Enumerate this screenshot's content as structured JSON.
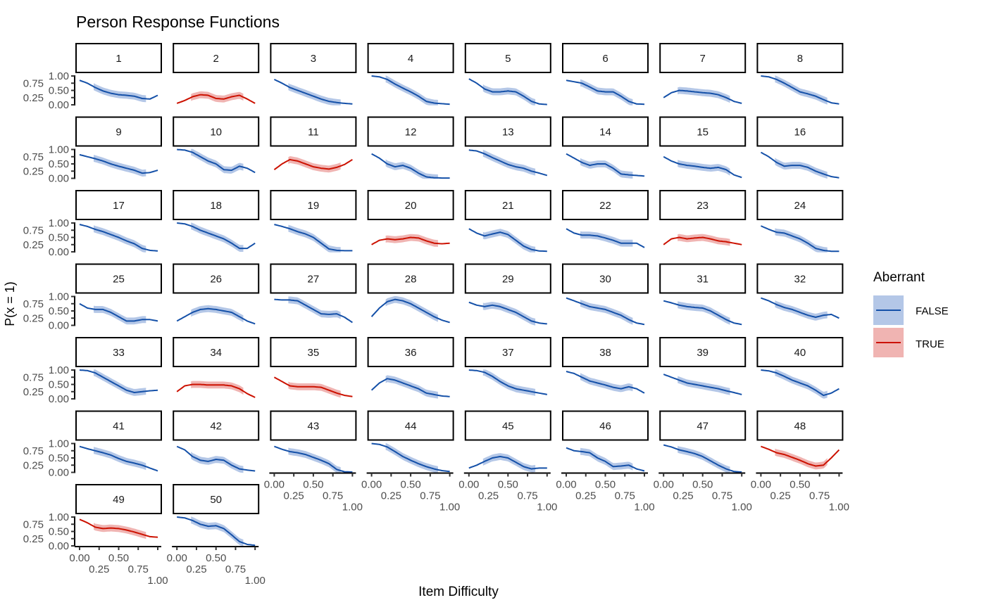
{
  "chart_data": {
    "type": "line",
    "title": "Person Response Functions",
    "xlabel": "Item Difficulty",
    "ylabel": "P(x = 1)",
    "xlim": [
      0,
      1
    ],
    "ylim": [
      0,
      1
    ],
    "x_ticks": [
      "0.00",
      "0.25",
      "0.50",
      "0.75",
      "1.00"
    ],
    "y_ticks": [
      "0.00",
      "0.25",
      "0.50",
      "0.75",
      "1.00"
    ],
    "x": [
      0,
      0.1,
      0.2,
      0.3,
      0.4,
      0.5,
      0.6,
      0.7,
      0.8,
      0.9,
      1.0
    ],
    "ribbon_x_range": [
      0.18,
      0.85
    ],
    "ribbon_halfwidth": 0.12,
    "legend": {
      "title": "Aberrant",
      "placement": "right",
      "entries": [
        {
          "label": "FALSE",
          "line_color": "#1450a8",
          "fill_color": "#b4c7e7"
        },
        {
          "label": "TRUE",
          "line_color": "#cc1100",
          "fill_color": "#f0b4b2"
        }
      ]
    },
    "panels": [
      {
        "label": "1",
        "aberrant": false,
        "y": [
          0.85,
          0.75,
          0.6,
          0.48,
          0.4,
          0.35,
          0.33,
          0.3,
          0.22,
          0.2,
          0.33
        ]
      },
      {
        "label": "2",
        "aberrant": true,
        "y": [
          0.05,
          0.15,
          0.28,
          0.35,
          0.33,
          0.22,
          0.2,
          0.28,
          0.33,
          0.2,
          0.05
        ]
      },
      {
        "label": "3",
        "aberrant": false,
        "y": [
          0.88,
          0.75,
          0.6,
          0.5,
          0.4,
          0.3,
          0.2,
          0.12,
          0.08,
          0.05,
          0.03
        ]
      },
      {
        "label": "4",
        "aberrant": false,
        "y": [
          1.0,
          0.97,
          0.88,
          0.72,
          0.58,
          0.45,
          0.3,
          0.12,
          0.06,
          0.04,
          0.02
        ]
      },
      {
        "label": "5",
        "aberrant": false,
        "y": [
          0.9,
          0.75,
          0.55,
          0.45,
          0.45,
          0.48,
          0.45,
          0.3,
          0.12,
          0.03,
          0.01
        ]
      },
      {
        "label": "6",
        "aberrant": false,
        "y": [
          0.85,
          0.8,
          0.75,
          0.62,
          0.48,
          0.45,
          0.45,
          0.3,
          0.12,
          0.03,
          0.02
        ]
      },
      {
        "label": "7",
        "aberrant": false,
        "y": [
          0.25,
          0.42,
          0.5,
          0.48,
          0.45,
          0.42,
          0.4,
          0.35,
          0.25,
          0.12,
          0.05
        ]
      },
      {
        "label": "8",
        "aberrant": false,
        "y": [
          1.0,
          0.97,
          0.88,
          0.75,
          0.6,
          0.45,
          0.38,
          0.3,
          0.18,
          0.07,
          0.03
        ]
      },
      {
        "label": "9",
        "aberrant": false,
        "y": [
          0.82,
          0.75,
          0.68,
          0.6,
          0.5,
          0.42,
          0.35,
          0.28,
          0.18,
          0.2,
          0.28
        ]
      },
      {
        "label": "10",
        "aberrant": false,
        "y": [
          1.0,
          0.98,
          0.9,
          0.75,
          0.6,
          0.5,
          0.3,
          0.28,
          0.42,
          0.35,
          0.2
        ]
      },
      {
        "label": "11",
        "aberrant": true,
        "y": [
          0.3,
          0.5,
          0.65,
          0.6,
          0.5,
          0.4,
          0.35,
          0.32,
          0.38,
          0.48,
          0.65
        ]
      },
      {
        "label": "12",
        "aberrant": false,
        "y": [
          0.85,
          0.7,
          0.5,
          0.4,
          0.45,
          0.35,
          0.18,
          0.05,
          0.02,
          0.01,
          0.01
        ]
      },
      {
        "label": "13",
        "aberrant": false,
        "y": [
          0.98,
          0.95,
          0.85,
          0.72,
          0.6,
          0.48,
          0.4,
          0.35,
          0.25,
          0.18,
          0.1
        ]
      },
      {
        "label": "14",
        "aberrant": false,
        "y": [
          0.85,
          0.7,
          0.55,
          0.45,
          0.5,
          0.5,
          0.35,
          0.15,
          0.12,
          0.1,
          0.08
        ]
      },
      {
        "label": "15",
        "aberrant": false,
        "y": [
          0.75,
          0.6,
          0.5,
          0.45,
          0.42,
          0.38,
          0.35,
          0.38,
          0.3,
          0.12,
          0.03
        ]
      },
      {
        "label": "16",
        "aberrant": false,
        "y": [
          0.9,
          0.75,
          0.55,
          0.42,
          0.45,
          0.45,
          0.38,
          0.25,
          0.15,
          0.06,
          0.02
        ]
      },
      {
        "label": "17",
        "aberrant": false,
        "y": [
          0.95,
          0.88,
          0.78,
          0.7,
          0.6,
          0.5,
          0.38,
          0.28,
          0.12,
          0.05,
          0.03
        ]
      },
      {
        "label": "18",
        "aberrant": false,
        "y": [
          1.0,
          0.97,
          0.88,
          0.75,
          0.65,
          0.55,
          0.45,
          0.3,
          0.12,
          0.12,
          0.3
        ]
      },
      {
        "label": "19",
        "aberrant": false,
        "y": [
          0.95,
          0.88,
          0.8,
          0.7,
          0.62,
          0.5,
          0.3,
          0.1,
          0.05,
          0.04,
          0.04
        ]
      },
      {
        "label": "20",
        "aberrant": true,
        "y": [
          0.25,
          0.4,
          0.45,
          0.42,
          0.45,
          0.5,
          0.48,
          0.38,
          0.3,
          0.28,
          0.3
        ]
      },
      {
        "label": "21",
        "aberrant": false,
        "y": [
          0.8,
          0.65,
          0.55,
          0.62,
          0.68,
          0.6,
          0.4,
          0.2,
          0.08,
          0.03,
          0.02
        ]
      },
      {
        "label": "22",
        "aberrant": false,
        "y": [
          0.8,
          0.65,
          0.58,
          0.58,
          0.55,
          0.48,
          0.4,
          0.3,
          0.3,
          0.3,
          0.15
        ]
      },
      {
        "label": "23",
        "aberrant": true,
        "y": [
          0.25,
          0.45,
          0.5,
          0.45,
          0.48,
          0.5,
          0.45,
          0.38,
          0.35,
          0.3,
          0.25
        ]
      },
      {
        "label": "24",
        "aberrant": false,
        "y": [
          0.9,
          0.78,
          0.68,
          0.65,
          0.55,
          0.45,
          0.3,
          0.12,
          0.05,
          0.02,
          0.02
        ]
      },
      {
        "label": "25",
        "aberrant": false,
        "y": [
          0.75,
          0.6,
          0.55,
          0.55,
          0.45,
          0.3,
          0.15,
          0.15,
          0.2,
          0.2,
          0.15
        ]
      },
      {
        "label": "26",
        "aberrant": false,
        "y": [
          0.15,
          0.3,
          0.45,
          0.55,
          0.58,
          0.55,
          0.5,
          0.45,
          0.3,
          0.15,
          0.05
        ]
      },
      {
        "label": "27",
        "aberrant": false,
        "y": [
          0.9,
          0.88,
          0.88,
          0.85,
          0.7,
          0.55,
          0.4,
          0.38,
          0.4,
          0.28,
          0.1
        ]
      },
      {
        "label": "28",
        "aberrant": false,
        "y": [
          0.3,
          0.6,
          0.82,
          0.9,
          0.85,
          0.75,
          0.6,
          0.45,
          0.3,
          0.18,
          0.1
        ]
      },
      {
        "label": "29",
        "aberrant": false,
        "y": [
          0.8,
          0.7,
          0.65,
          0.7,
          0.65,
          0.55,
          0.45,
          0.3,
          0.15,
          0.08,
          0.05
        ]
      },
      {
        "label": "30",
        "aberrant": false,
        "y": [
          0.95,
          0.85,
          0.75,
          0.65,
          0.6,
          0.55,
          0.45,
          0.35,
          0.2,
          0.08,
          0.03
        ]
      },
      {
        "label": "31",
        "aberrant": false,
        "y": [
          0.85,
          0.78,
          0.7,
          0.65,
          0.62,
          0.6,
          0.5,
          0.35,
          0.2,
          0.08,
          0.03
        ]
      },
      {
        "label": "32",
        "aberrant": false,
        "y": [
          0.95,
          0.85,
          0.72,
          0.62,
          0.55,
          0.45,
          0.35,
          0.28,
          0.35,
          0.38,
          0.25
        ]
      },
      {
        "label": "33",
        "aberrant": false,
        "y": [
          1.0,
          0.98,
          0.9,
          0.75,
          0.6,
          0.45,
          0.3,
          0.22,
          0.25,
          0.28,
          0.3
        ]
      },
      {
        "label": "34",
        "aberrant": true,
        "y": [
          0.25,
          0.45,
          0.5,
          0.5,
          0.48,
          0.48,
          0.48,
          0.45,
          0.35,
          0.18,
          0.05
        ]
      },
      {
        "label": "35",
        "aberrant": true,
        "y": [
          0.75,
          0.6,
          0.45,
          0.42,
          0.42,
          0.42,
          0.4,
          0.3,
          0.2,
          0.12,
          0.08
        ]
      },
      {
        "label": "36",
        "aberrant": false,
        "y": [
          0.3,
          0.55,
          0.7,
          0.65,
          0.55,
          0.45,
          0.35,
          0.2,
          0.15,
          0.1,
          0.08
        ]
      },
      {
        "label": "37",
        "aberrant": false,
        "y": [
          1.0,
          0.98,
          0.92,
          0.78,
          0.6,
          0.45,
          0.35,
          0.3,
          0.25,
          0.2,
          0.15
        ]
      },
      {
        "label": "38",
        "aberrant": false,
        "y": [
          0.95,
          0.88,
          0.75,
          0.62,
          0.55,
          0.48,
          0.4,
          0.35,
          0.42,
          0.35,
          0.2
        ]
      },
      {
        "label": "39",
        "aberrant": false,
        "y": [
          0.85,
          0.75,
          0.65,
          0.55,
          0.5,
          0.45,
          0.4,
          0.35,
          0.28,
          0.22,
          0.15
        ]
      },
      {
        "label": "40",
        "aberrant": false,
        "y": [
          1.0,
          0.97,
          0.9,
          0.78,
          0.65,
          0.55,
          0.45,
          0.3,
          0.12,
          0.2,
          0.35
        ]
      },
      {
        "label": "41",
        "aberrant": false,
        "y": [
          0.9,
          0.82,
          0.75,
          0.68,
          0.6,
          0.48,
          0.38,
          0.32,
          0.25,
          0.15,
          0.05
        ]
      },
      {
        "label": "42",
        "aberrant": false,
        "y": [
          0.9,
          0.78,
          0.55,
          0.42,
          0.38,
          0.45,
          0.42,
          0.25,
          0.12,
          0.08,
          0.05
        ]
      },
      {
        "label": "43",
        "aberrant": false,
        "y": [
          0.9,
          0.8,
          0.72,
          0.68,
          0.62,
          0.52,
          0.42,
          0.3,
          0.1,
          0.02,
          0.01
        ]
      },
      {
        "label": "44",
        "aberrant": false,
        "y": [
          1.0,
          0.97,
          0.88,
          0.72,
          0.55,
          0.42,
          0.3,
          0.2,
          0.12,
          0.06,
          0.03
        ]
      },
      {
        "label": "45",
        "aberrant": false,
        "y": [
          0.15,
          0.25,
          0.38,
          0.5,
          0.55,
          0.5,
          0.35,
          0.2,
          0.12,
          0.15,
          0.15
        ]
      },
      {
        "label": "46",
        "aberrant": false,
        "y": [
          0.85,
          0.75,
          0.72,
          0.68,
          0.5,
          0.38,
          0.2,
          0.22,
          0.25,
          0.12,
          0.05
        ]
      },
      {
        "label": "47",
        "aberrant": false,
        "y": [
          0.95,
          0.88,
          0.78,
          0.72,
          0.65,
          0.55,
          0.4,
          0.25,
          0.12,
          0.03,
          0.01
        ]
      },
      {
        "label": "48",
        "aberrant": true,
        "y": [
          0.9,
          0.8,
          0.68,
          0.62,
          0.52,
          0.42,
          0.3,
          0.22,
          0.25,
          0.5,
          0.78
        ]
      },
      {
        "label": "49",
        "aberrant": true,
        "y": [
          0.92,
          0.8,
          0.65,
          0.6,
          0.62,
          0.6,
          0.55,
          0.48,
          0.4,
          0.32,
          0.3
        ]
      },
      {
        "label": "50",
        "aberrant": false,
        "y": [
          1.0,
          0.97,
          0.88,
          0.75,
          0.68,
          0.7,
          0.6,
          0.38,
          0.15,
          0.05,
          0.02
        ]
      }
    ]
  }
}
